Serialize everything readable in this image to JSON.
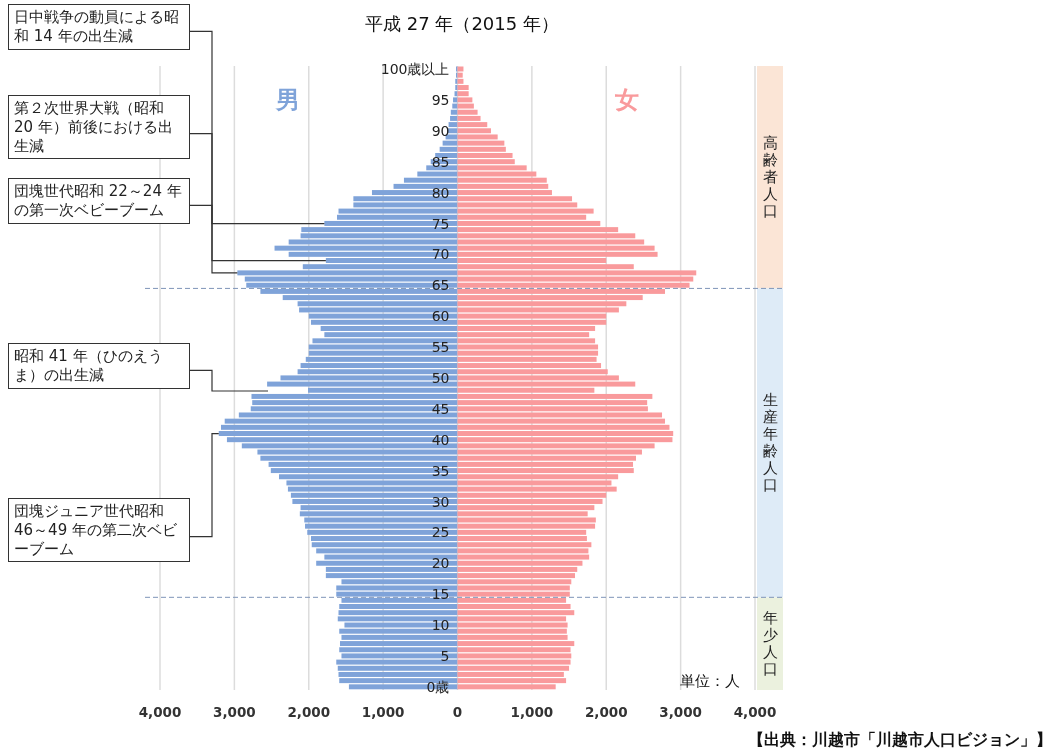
{
  "chart_data": {
    "type": "bar",
    "orientation": "horizontal",
    "title": "平成 27 年（2015 年）",
    "x": [
      0,
      1,
      2,
      3,
      4,
      5,
      6,
      7,
      8,
      9,
      10,
      11,
      12,
      13,
      14,
      15,
      16,
      17,
      18,
      19,
      20,
      21,
      22,
      23,
      24,
      25,
      26,
      27,
      28,
      29,
      30,
      31,
      32,
      33,
      34,
      35,
      36,
      37,
      38,
      39,
      40,
      41,
      42,
      43,
      44,
      45,
      46,
      47,
      48,
      49,
      50,
      51,
      52,
      53,
      54,
      55,
      56,
      57,
      58,
      59,
      60,
      61,
      62,
      63,
      64,
      65,
      66,
      67,
      68,
      69,
      70,
      71,
      72,
      73,
      74,
      75,
      76,
      77,
      78,
      79,
      80,
      81,
      82,
      83,
      84,
      85,
      86,
      87,
      88,
      89,
      90,
      91,
      92,
      93,
      94,
      95,
      96,
      97,
      98,
      99,
      100
    ],
    "series": [
      {
        "name": "男",
        "color": "#7fa3d9",
        "values": [
          -1460,
          -1590,
          -1600,
          -1610,
          -1630,
          -1560,
          -1590,
          -1580,
          -1560,
          -1590,
          -1520,
          -1610,
          -1600,
          -1590,
          -1560,
          -1630,
          -1630,
          -1560,
          -1770,
          -1770,
          -1900,
          -1790,
          -1900,
          -1960,
          -1970,
          -2020,
          -2050,
          -2060,
          -2120,
          -2110,
          -2220,
          -2240,
          -2280,
          -2300,
          -2400,
          -2510,
          -2540,
          -2650,
          -2690,
          -2900,
          -3100,
          -3210,
          -3180,
          -3130,
          -2940,
          -2780,
          -2760,
          -2770,
          -2010,
          -2560,
          -2380,
          -2150,
          -2110,
          -2040,
          -2000,
          -2000,
          -1950,
          -1790,
          -1840,
          -1970,
          -2000,
          -2130,
          -2150,
          -2350,
          -2650,
          -2840,
          -2860,
          -2960,
          -2080,
          -1770,
          -2270,
          -2460,
          -2270,
          -2110,
          -2100,
          -1790,
          -1620,
          -1600,
          -1400,
          -1400,
          -1150,
          -860,
          -720,
          -540,
          -420,
          -360,
          -300,
          -240,
          -200,
          -160,
          -140,
          -120,
          -100,
          -90,
          -70,
          -60,
          -40,
          -30,
          -30,
          -20,
          -20
        ]
      },
      {
        "name": "女",
        "color": "#f99a9c",
        "values": [
          1320,
          1460,
          1430,
          1500,
          1520,
          1530,
          1520,
          1570,
          1480,
          1470,
          1480,
          1460,
          1570,
          1520,
          1460,
          1510,
          1510,
          1530,
          1580,
          1610,
          1680,
          1770,
          1760,
          1800,
          1740,
          1730,
          1850,
          1860,
          1750,
          1840,
          1950,
          2000,
          2140,
          2070,
          2160,
          2370,
          2360,
          2400,
          2480,
          2650,
          2890,
          2900,
          2850,
          2790,
          2750,
          2560,
          2550,
          2620,
          1840,
          2390,
          2170,
          2020,
          1930,
          1870,
          1890,
          1890,
          1850,
          1770,
          1850,
          2000,
          2000,
          2170,
          2270,
          2490,
          2790,
          3120,
          3170,
          3210,
          2370,
          2000,
          2690,
          2650,
          2510,
          2390,
          2160,
          1920,
          1730,
          1830,
          1610,
          1540,
          1270,
          1220,
          1200,
          1060,
          930,
          770,
          740,
          650,
          630,
          540,
          450,
          400,
          310,
          270,
          220,
          200,
          150,
          150,
          80,
          70,
          80
        ]
      }
    ],
    "xlim": [
      -4000,
      4000
    ],
    "xticks": [
      {
        "value": -4000,
        "label": "4,000"
      },
      {
        "value": -3000,
        "label": "3,000"
      },
      {
        "value": -2000,
        "label": "2,000"
      },
      {
        "value": -1000,
        "label": "1,000"
      },
      0,
      {
        "value": 1000,
        "label": "1,000"
      },
      {
        "value": 2000,
        "label": "2,000"
      },
      {
        "value": 3000,
        "label": "3,000"
      },
      {
        "value": 4000,
        "label": "4,000"
      }
    ],
    "ylim": [
      -0.5,
      100.5
    ],
    "yticks": [
      {
        "value": 0,
        "label": "0歳"
      },
      5,
      10,
      15,
      20,
      25,
      30,
      35,
      40,
      45,
      50,
      55,
      60,
      65,
      70,
      75,
      80,
      85,
      90,
      95,
      {
        "value": 100,
        "label": "100歳以上"
      }
    ],
    "grid": "x",
    "legend": false,
    "stacked": true,
    "ref_lines": [
      {
        "axis": "y",
        "value": 64.5,
        "color": "#7f95b8",
        "line_style": "dashed"
      },
      {
        "axis": "y",
        "value": 14.5,
        "color": "#7f95b8",
        "line_style": "dashed"
      }
    ],
    "annotations": [
      {
        "text": "日中戦争の動員による昭和 14 年の出生減",
        "x": -1790,
        "y": 75
      },
      {
        "text": "第２次世界大戦（昭和 20 年）前後における出生減",
        "x": -1770,
        "y": 69
      },
      {
        "text": "団塊世代昭和 22～24 年の第一次ベビーブーム",
        "x": -2960,
        "y": 67
      },
      "昭和 41 年（ひのえうま）の出生減",
      {
        "text": "団塊ジュニア世代昭和 46～49 年の第二次ベビーブーム",
        "x": -3210,
        "y": 41
      },
      "高齢者人口",
      "生産年齢人口",
      "年少人口",
      "単位：人",
      "【出典：川越市「川越市人口ビジョン」】"
    ]
  }
}
